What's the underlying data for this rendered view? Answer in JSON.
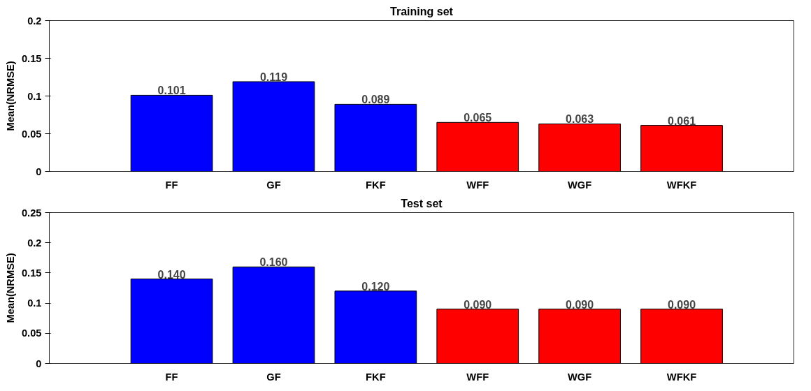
{
  "chart_data": [
    {
      "type": "bar",
      "title": "Training set",
      "ylabel": "Mean(NRMSE)",
      "categories": [
        "FF",
        "GF",
        "FKF",
        "WFF",
        "WGF",
        "WFKF"
      ],
      "values": [
        0.101,
        0.119,
        0.089,
        0.065,
        0.063,
        0.061
      ],
      "colors": [
        "#0000ff",
        "#0000ff",
        "#0000ff",
        "#ff0000",
        "#ff0000",
        "#ff0000"
      ],
      "value_labels": [
        "0.101",
        "0.119",
        "0.089",
        "0.065",
        "0.063",
        "0.061"
      ],
      "ylim": [
        0,
        0.2
      ],
      "yticks": [
        0,
        0.05,
        0.1,
        0.15,
        0.2
      ],
      "grid": false
    },
    {
      "type": "bar",
      "title": "Test set",
      "ylabel": "Mean(NRMSE)",
      "categories": [
        "FF",
        "GF",
        "FKF",
        "WFF",
        "WGF",
        "WFKF"
      ],
      "values": [
        0.14,
        0.16,
        0.12,
        0.09,
        0.09,
        0.09
      ],
      "colors": [
        "#0000ff",
        "#0000ff",
        "#0000ff",
        "#ff0000",
        "#ff0000",
        "#ff0000"
      ],
      "value_labels": [
        "0.140",
        "0.160",
        "0.120",
        "0.090",
        "0.090",
        "0.090"
      ],
      "ylim": [
        0,
        0.25
      ],
      "yticks": [
        0,
        0.05,
        0.1,
        0.15,
        0.2,
        0.25
      ],
      "grid": false
    }
  ]
}
